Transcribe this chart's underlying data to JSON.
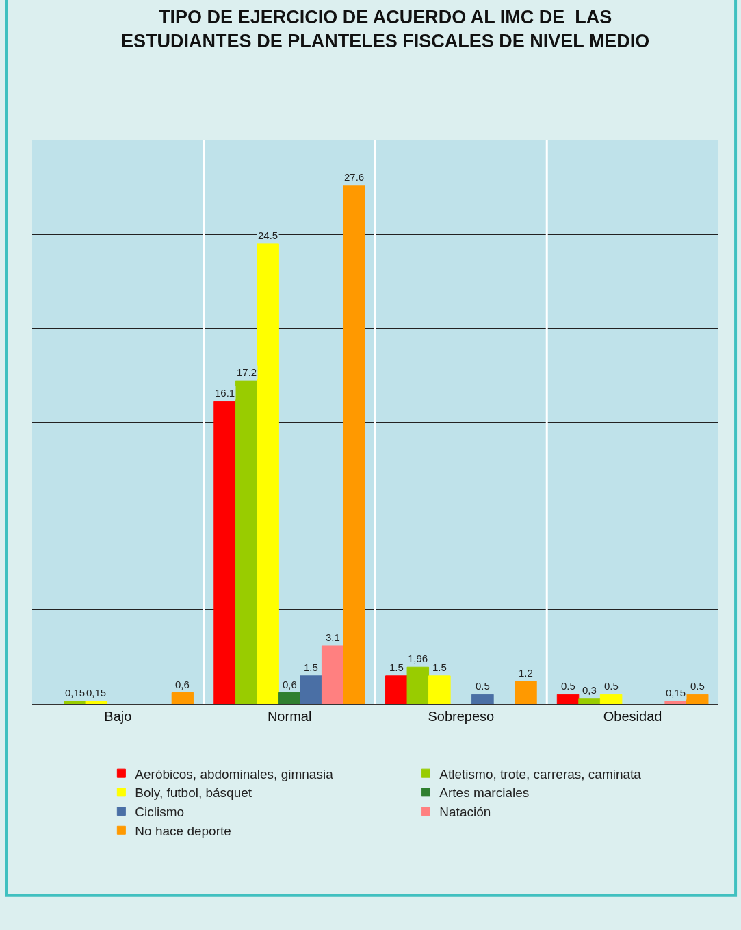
{
  "chart_data": {
    "type": "bar",
    "title": "TIPO DE EJERCICIO DE ACUERDO AL IMC DE  LAS ESTUDIANTES DE PLANTELES FISCALES DE NIVEL MEDIO",
    "categories": [
      "Bajo",
      "Normal",
      "Sobrepeso",
      "Obesidad"
    ],
    "series": [
      {
        "name": "Aeróbicos, abdominales, gimnasia",
        "color": "#ff0000",
        "values": [
          null,
          16.1,
          1.5,
          0.5
        ],
        "value_labels": [
          null,
          "16.1",
          "1.5",
          "0.5"
        ]
      },
      {
        "name": "Atletismo, trote, carreras, caminata",
        "color": "#99cc00",
        "values": [
          0.15,
          17.2,
          1.96,
          0.3
        ],
        "value_labels": [
          "0,15",
          "17.2",
          "1,96",
          "0,3"
        ]
      },
      {
        "name": "Boly, futbol, básquet",
        "color": "#ffff00",
        "values": [
          0.15,
          24.5,
          1.5,
          0.5
        ],
        "value_labels": [
          "0,15",
          "24.5",
          "1.5",
          "0.5"
        ]
      },
      {
        "name": "Artes marciales",
        "color": "#2f7f2f",
        "values": [
          null,
          0.6,
          null,
          null
        ],
        "value_labels": [
          null,
          "0,6",
          null,
          null
        ]
      },
      {
        "name": "Ciclismo",
        "color": "#4a6fa5",
        "values": [
          null,
          1.5,
          0.5,
          null
        ],
        "value_labels": [
          null,
          "1.5",
          "0.5",
          null
        ]
      },
      {
        "name": "Natación",
        "color": "#ff8080",
        "values": [
          null,
          3.1,
          null,
          0.15
        ],
        "value_labels": [
          null,
          "3.1",
          null,
          "0,15"
        ]
      },
      {
        "name": "No hace deporte",
        "color": "#ff9900",
        "values": [
          0.6,
          27.6,
          1.2,
          0.5
        ],
        "value_labels": [
          "0,6",
          "27.6",
          "1.2",
          "0.5"
        ]
      }
    ],
    "ylim": [
      0,
      30
    ],
    "yticks": [
      {
        "value": 5,
        "label": null
      },
      {
        "value": 10,
        "label": null
      },
      {
        "value": 15,
        "label": null
      },
      {
        "value": 20,
        "label": null
      },
      {
        "value": 25,
        "label": null
      }
    ],
    "grid": "y",
    "tick_labels": "x",
    "legend": "bottom"
  }
}
